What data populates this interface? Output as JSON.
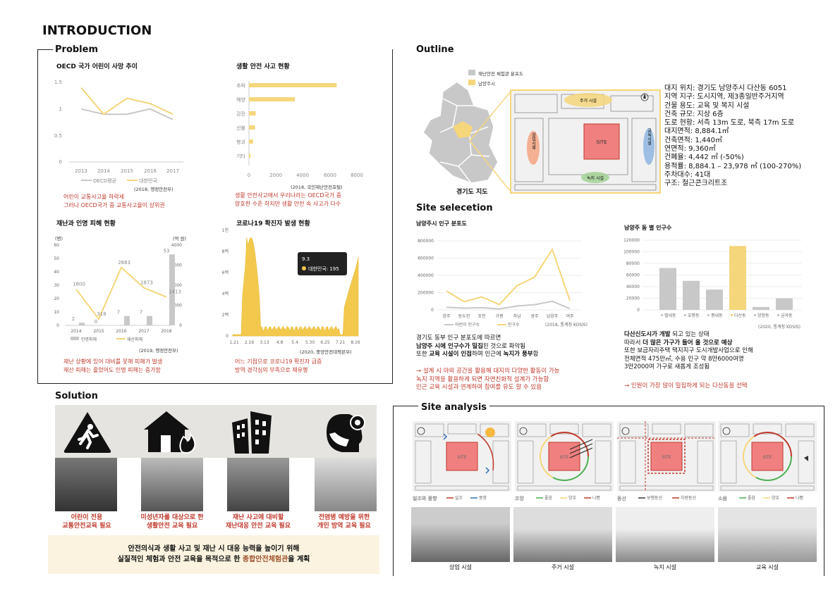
{
  "page_title": "INTRODUCTION",
  "problem": {
    "title": "Problem",
    "oecd": {
      "title": "OECD 국가 어린이 사망 추이",
      "legend": [
        "OECD평균",
        "대한민국"
      ],
      "source": "(2018, 행정안전부)",
      "note": [
        "어린이 교통사고율 하락세",
        "그러나 OECD국가 중 교통사고율이 상위권"
      ]
    },
    "accidents": {
      "title": "생활 안전 사고 현황",
      "source": "(2018, 국민재난안전포털)",
      "note": [
        "생활 안전사고에서 우리나라는 OECD국가 중",
        "양호한 수준 하지만 생활 안전 속 사고가 다수"
      ]
    },
    "disaster": {
      "title": "재난과 인명 피해 현황",
      "unit_left": "(명)",
      "unit_right": "(억 원)",
      "legend": [
        "인명피해",
        "재산피해"
      ],
      "source": "(2019, 행정안전부)",
      "note": [
        "재난 상황에 있어 대비를 못해 피해가 발생",
        "재산 피해는 줄었어도 인명 피해는 증가함"
      ]
    },
    "covid": {
      "title": "코로나19 확진자 발생 현황",
      "tooltip_date": "9.3",
      "tooltip_value": "대한민국: 195",
      "source": "(2020, 중앙안전대책본부)",
      "note": [
        "어느 기점으로 코로나19 확진자 급증",
        "방역 경각심의 부족으로 재유행"
      ]
    }
  },
  "outline": {
    "title": "Outline",
    "legend": [
      "재난안전 체험관 분포도",
      "남양주시"
    ],
    "map_caption": "경기도 지도",
    "site_labels": {
      "north": "주거 시설",
      "west": "상업시설",
      "east": "교육시설",
      "south": "녹지 시설",
      "site": "SITE"
    },
    "info": [
      "대지 위치: 경기도 남양주시 다산동 6051",
      "지역 지구: 도시지역, 제3종일반주거지역",
      "건물 용도: 교육 및 복지 시설",
      "건축 규모: 지상 6층",
      "도로 현황: 서측 13m 도로, 북측 17m 도로",
      "대지면적: 8,884.1㎡",
      "건축면적: 1,440㎡",
      "연면적: 9,360㎡",
      "건폐율: 4,442 ㎡ (-50%)",
      "용적률: 8,884.1 – 23,978 ㎡ (100-270%)",
      "주차대수: 41대",
      "구조: 철근콘크리트조"
    ]
  },
  "site_selection": {
    "title": "Site selecetion",
    "pop_dist": {
      "title": "남양주시 인구 분포도",
      "legend": [
        "어린이 인구수",
        "인구수"
      ],
      "source": "(2018, 통계청 KOSIS)"
    },
    "dong_pop": {
      "title": "남양주 동 별 인구수",
      "source": "(2020, 통계청 KOSIS)"
    },
    "left_text": [
      {
        "t": "경기도 동부 인구 분포도에 따르면",
        "b": ""
      },
      {
        "t": "",
        "b": "남양주 시에 인구수가 밀집",
        "t2": "된 것으로 파악됨"
      },
      {
        "t": "또한 ",
        "b": "교육 시설이 인접",
        "t2": "하며 인근에 ",
        "b2": "녹지가 풍부",
        "t3": "함"
      }
    ],
    "left_red": [
      "→ 설계 시 야외 공간을 활용해 대지의 다양한 활동이 가능",
      "녹지 지역을 활용하게 되면 자연친화적 설계가 가능함",
      "인근 교육 시설과 연계하여 참여를 유도 할 수 있음"
    ],
    "right_text": {
      "l1b": "다산신도시가 개발",
      "l1": " 되고 있는 상태",
      "l2": "따라서 ",
      "l2b": "더 많은 가구가 들어 올 것으로 예상",
      "l3": "또한 보금자리주택 택지지구 도시개발사업으로 인해",
      "l4": "전체면적 475만㎡, 수용 인구 약 8만6000여명",
      "l5": "3만2000여 가구로 새롭게 조성됨"
    },
    "right_red": "→ 인원이 가장 많이 밀집하게 되는 다산동을 선택"
  },
  "solution": {
    "title": "Solution",
    "items": [
      {
        "icon": "child-running-warning-icon",
        "label": [
          "어린이 전용",
          "교통안전교육 필요"
        ]
      },
      {
        "icon": "house-fire-icon",
        "label": [
          "미성년자를 대상으로 한",
          "생활안전 교육 필요"
        ]
      },
      {
        "icon": "collapsing-building-icon",
        "label": [
          "재난 사고에 대비할",
          "재난대응 안전 교육 필요"
        ]
      },
      {
        "icon": "mask-virus-icon",
        "label": [
          "전염병 예방을 위한",
          "개인 방역 교육 필요"
        ]
      }
    ],
    "conclusion_l1": "안전의식과 생활 사고 및 재난 시 대응 능력을 높이기 위해",
    "conclusion_l2a": "실질적인 체험과 안전 교육을 목적으로 한 ",
    "conclusion_l2b": "종합안전체험관",
    "conclusion_l2c": "을 계획"
  },
  "site_analysis": {
    "title": "Site analysis",
    "panels": [
      {
        "name": "일조와 풍향",
        "legend": [
          "일조",
          "풍향"
        ]
      },
      {
        "name": "조망",
        "legend": [
          "좋음",
          "양호",
          "나쁨"
        ]
      },
      {
        "name": "동선",
        "legend": [
          "보행동선",
          "차량동선"
        ]
      },
      {
        "name": "소음",
        "legend": [
          "좋음",
          "양호",
          "나쁨"
        ]
      }
    ],
    "photos": [
      "상업 시설",
      "주거 시설",
      "녹지 시설",
      "교육 시설"
    ],
    "site": "SITE"
  },
  "colors": {
    "accent": "#f5d67b",
    "red": "#c0392b",
    "gray": "#c8c8c8",
    "site": "#f08080"
  },
  "chart_data": [
    {
      "type": "line",
      "title": "OECD 국가 어린이 사망 추이",
      "categories": [
        "2013",
        "2014",
        "2015",
        "2016",
        "2017"
      ],
      "series": [
        {
          "name": "OECD평균",
          "values": [
            1.0,
            0.9,
            0.9,
            1.0,
            0.8
          ]
        },
        {
          "name": "대한민국",
          "values": [
            1.4,
            0.9,
            1.2,
            1.1,
            0.9
          ]
        }
      ],
      "ylim": [
        0,
        1.5
      ],
      "yticks": [
        "0",
        "0.5",
        "1",
        "1.5"
      ]
    },
    {
      "type": "bar",
      "title": "생활 안전 사고 현황",
      "categories": [
        "추락",
        "해양",
        "감전",
        "산불",
        "붕괴",
        "기타"
      ],
      "values": [
        6500,
        3400,
        500,
        450,
        300,
        100
      ],
      "xlim": [
        0,
        8000
      ],
      "xticks": [
        "0",
        "2000",
        "4000",
        "6000",
        "8000"
      ]
    },
    {
      "type": "bar",
      "title": "재난과 인명 피해 현황",
      "categories": [
        "2014",
        "2015",
        "2016",
        "2017",
        "2018"
      ],
      "series": [
        {
          "name": "인명피해",
          "values": [
            2,
            0,
            7,
            7,
            53
          ]
        },
        {
          "name": "재산피해",
          "values": [
            1800,
            318,
            2883,
            1873,
            1413
          ]
        }
      ],
      "ylim_left": [
        0,
        60
      ],
      "ylim_right": [
        0,
        4000
      ],
      "yticks_left": [
        "0",
        "10",
        "20",
        "30",
        "40",
        "50",
        "60"
      ],
      "yticks_right": [
        "0",
        "1000",
        "2000",
        "3000",
        "4000"
      ]
    },
    {
      "type": "area",
      "title": "코로나19 확진자 발생 현황",
      "xticks": [
        "1.21",
        "2.16",
        "3.13",
        "4.8",
        "5.4",
        "5.30",
        "6.25",
        "7.21",
        "8.16"
      ],
      "yticks": [
        "0",
        "2백",
        "4백",
        "6백",
        "8백",
        "1천"
      ],
      "ylim": [
        0,
        1000
      ],
      "peak_value": 909
    },
    {
      "type": "line",
      "title": "남양주시 인구 분포도",
      "categories": [
        "양주",
        "동두천",
        "포천",
        "가평",
        "하남",
        "광주",
        "남양주",
        "여주"
      ],
      "series": [
        {
          "name": "어린이 인구수",
          "values": [
            30000,
            20000,
            25000,
            10000,
            45000,
            60000,
            100000,
            15000
          ]
        },
        {
          "name": "인구수",
          "values": [
            220000,
            95000,
            150000,
            62000,
            280000,
            380000,
            700000,
            110000
          ]
        }
      ],
      "ylim": [
        0,
        800000
      ],
      "yticks": [
        "0",
        "200000",
        "400000",
        "600000",
        "800000"
      ]
    },
    {
      "type": "bar",
      "title": "남양주 동 별 인구수",
      "categories": [
        "별내동",
        "호평동",
        "평내동",
        "다산동",
        "양정동",
        "금곡동"
      ],
      "values": [
        72000,
        50000,
        35000,
        110000,
        5000,
        20000
      ],
      "highlight": "다산동",
      "ylim": [
        0,
        120000
      ],
      "yticks": [
        "0",
        "20000",
        "40000",
        "60000",
        "80000",
        "100000",
        "120000"
      ]
    }
  ]
}
